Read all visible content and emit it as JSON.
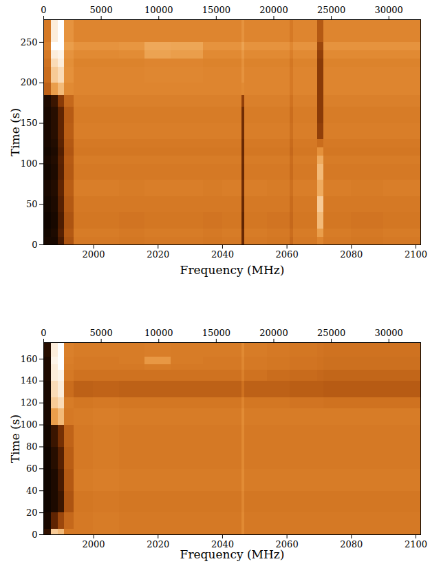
{
  "chart_data": [
    {
      "type": "heatmap",
      "xlabel": "Frequency (MHz)",
      "ylabel": "Time (s)",
      "xlim": [
        1984.5,
        2101.5
      ],
      "xticks": [
        2000,
        2020,
        2040,
        2060,
        2080,
        2100
      ],
      "x2lim": [
        0,
        32768
      ],
      "x2ticks": [
        0,
        5000,
        10000,
        15000,
        20000,
        25000,
        30000
      ],
      "ylim": [
        0,
        278
      ],
      "yticks": [
        0,
        50,
        100,
        150,
        200,
        250
      ],
      "color_range": [
        0,
        1
      ],
      "x_edges": [
        1984.5,
        1987,
        1989,
        1991,
        1994,
        2000,
        2008,
        2016,
        2024,
        2034,
        2040,
        2046,
        2047,
        2054,
        2061,
        2062,
        2069.5,
        2071.5,
        2080,
        2090,
        2101.5
      ],
      "y_edges": [
        0,
        10,
        20,
        40,
        60,
        80,
        100,
        110,
        120,
        130,
        150,
        170,
        185,
        200,
        220,
        230,
        240,
        250,
        278
      ],
      "cells": [
        [
          0.05,
          0.05,
          0.15,
          0.4,
          0.55,
          0.55,
          0.54,
          0.55,
          0.55,
          0.54,
          0.55,
          0.22,
          0.55,
          0.54,
          0.48,
          0.55,
          0.6,
          0.55,
          0.54,
          0.55
        ],
        [
          0.04,
          0.06,
          0.18,
          0.42,
          0.56,
          0.56,
          0.55,
          0.56,
          0.56,
          0.55,
          0.56,
          0.22,
          0.56,
          0.55,
          0.5,
          0.56,
          0.7,
          0.56,
          0.55,
          0.56
        ],
        [
          0.03,
          0.05,
          0.16,
          0.4,
          0.54,
          0.54,
          0.53,
          0.54,
          0.54,
          0.53,
          0.54,
          0.2,
          0.54,
          0.53,
          0.48,
          0.54,
          0.8,
          0.54,
          0.53,
          0.54
        ],
        [
          0.04,
          0.06,
          0.18,
          0.42,
          0.55,
          0.55,
          0.55,
          0.55,
          0.55,
          0.55,
          0.55,
          0.22,
          0.55,
          0.55,
          0.49,
          0.55,
          0.85,
          0.55,
          0.55,
          0.55
        ],
        [
          0.05,
          0.07,
          0.2,
          0.44,
          0.57,
          0.57,
          0.56,
          0.57,
          0.57,
          0.56,
          0.57,
          0.24,
          0.57,
          0.56,
          0.51,
          0.57,
          0.75,
          0.57,
          0.56,
          0.57
        ],
        [
          0.04,
          0.06,
          0.18,
          0.42,
          0.55,
          0.55,
          0.55,
          0.55,
          0.55,
          0.55,
          0.55,
          0.22,
          0.55,
          0.55,
          0.49,
          0.55,
          0.8,
          0.55,
          0.55,
          0.55
        ],
        [
          0.05,
          0.07,
          0.19,
          0.43,
          0.56,
          0.56,
          0.56,
          0.56,
          0.56,
          0.56,
          0.56,
          0.23,
          0.56,
          0.56,
          0.5,
          0.56,
          0.75,
          0.56,
          0.56,
          0.56
        ],
        [
          0.04,
          0.06,
          0.17,
          0.41,
          0.54,
          0.54,
          0.54,
          0.54,
          0.54,
          0.54,
          0.54,
          0.22,
          0.54,
          0.54,
          0.48,
          0.54,
          0.65,
          0.54,
          0.54,
          0.54
        ],
        [
          0.05,
          0.07,
          0.19,
          0.42,
          0.55,
          0.55,
          0.55,
          0.55,
          0.55,
          0.55,
          0.55,
          0.22,
          0.55,
          0.55,
          0.49,
          0.55,
          0.5,
          0.55,
          0.55,
          0.55
        ],
        [
          0.05,
          0.08,
          0.2,
          0.44,
          0.57,
          0.57,
          0.57,
          0.57,
          0.57,
          0.57,
          0.57,
          0.24,
          0.57,
          0.57,
          0.51,
          0.57,
          0.32,
          0.57,
          0.57,
          0.57
        ],
        [
          0.05,
          0.08,
          0.2,
          0.43,
          0.56,
          0.56,
          0.56,
          0.56,
          0.56,
          0.56,
          0.56,
          0.24,
          0.56,
          0.56,
          0.5,
          0.56,
          0.3,
          0.56,
          0.56,
          0.56
        ],
        [
          0.06,
          0.12,
          0.3,
          0.48,
          0.58,
          0.58,
          0.58,
          0.58,
          0.58,
          0.58,
          0.58,
          0.32,
          0.58,
          0.58,
          0.52,
          0.58,
          0.3,
          0.58,
          0.58,
          0.58
        ],
        [
          0.45,
          0.7,
          0.8,
          0.62,
          0.6,
          0.6,
          0.6,
          0.6,
          0.6,
          0.6,
          0.6,
          0.62,
          0.6,
          0.6,
          0.55,
          0.6,
          0.3,
          0.6,
          0.6,
          0.6
        ],
        [
          0.5,
          0.85,
          0.9,
          0.65,
          0.6,
          0.6,
          0.6,
          0.61,
          0.61,
          0.6,
          0.6,
          0.66,
          0.6,
          0.6,
          0.55,
          0.6,
          0.3,
          0.6,
          0.6,
          0.6
        ],
        [
          0.52,
          0.9,
          0.95,
          0.64,
          0.59,
          0.59,
          0.59,
          0.6,
          0.6,
          0.59,
          0.59,
          0.65,
          0.59,
          0.59,
          0.54,
          0.59,
          0.3,
          0.59,
          0.59,
          0.59
        ],
        [
          0.55,
          0.95,
          0.97,
          0.66,
          0.62,
          0.62,
          0.63,
          0.72,
          0.7,
          0.62,
          0.62,
          0.68,
          0.62,
          0.62,
          0.57,
          0.62,
          0.32,
          0.62,
          0.62,
          0.62
        ],
        [
          0.58,
          1.0,
          1.0,
          0.7,
          0.66,
          0.66,
          0.67,
          0.74,
          0.73,
          0.66,
          0.66,
          0.72,
          0.66,
          0.66,
          0.61,
          0.66,
          0.35,
          0.66,
          0.66,
          0.66
        ],
        [
          0.55,
          0.95,
          1.0,
          0.66,
          0.6,
          0.6,
          0.6,
          0.6,
          0.6,
          0.6,
          0.6,
          0.66,
          0.6,
          0.6,
          0.55,
          0.6,
          0.42,
          0.6,
          0.6,
          0.6
        ]
      ]
    },
    {
      "type": "heatmap",
      "xlabel": "Frequency (MHz)",
      "ylabel": "Time (s)",
      "xlim": [
        1984.5,
        2101.5
      ],
      "xticks": [
        2000,
        2020,
        2040,
        2060,
        2080,
        2100
      ],
      "x2lim": [
        0,
        32768
      ],
      "x2ticks": [
        0,
        5000,
        10000,
        15000,
        20000,
        25000,
        30000
      ],
      "ylim": [
        0,
        175
      ],
      "yticks": [
        0,
        20,
        40,
        60,
        80,
        100,
        120,
        140,
        160
      ],
      "color_range": [
        0,
        1
      ],
      "x_edges": [
        1984.5,
        1987,
        1989,
        1991,
        1994,
        2000,
        2008,
        2016,
        2024,
        2034,
        2040,
        2046,
        2047,
        2054,
        2061,
        2062,
        2069.5,
        2071.5,
        2080,
        2090,
        2101.5
      ],
      "y_edges": [
        0,
        5,
        20,
        40,
        60,
        80,
        100,
        115,
        125,
        140,
        150,
        155,
        162,
        175
      ],
      "cells": [
        [
          0.1,
          0.85,
          0.8,
          0.55,
          0.55,
          0.56,
          0.55,
          0.55,
          0.55,
          0.55,
          0.55,
          0.62,
          0.55,
          0.55,
          0.55,
          0.55,
          0.55,
          0.55,
          0.55,
          0.55
        ],
        [
          0.05,
          0.2,
          0.35,
          0.48,
          0.55,
          0.56,
          0.55,
          0.55,
          0.55,
          0.55,
          0.55,
          0.62,
          0.55,
          0.55,
          0.55,
          0.55,
          0.55,
          0.55,
          0.55,
          0.55
        ],
        [
          0.03,
          0.06,
          0.12,
          0.4,
          0.54,
          0.55,
          0.54,
          0.54,
          0.54,
          0.54,
          0.54,
          0.61,
          0.54,
          0.54,
          0.54,
          0.54,
          0.54,
          0.54,
          0.54,
          0.54
        ],
        [
          0.03,
          0.06,
          0.15,
          0.42,
          0.56,
          0.57,
          0.56,
          0.56,
          0.56,
          0.56,
          0.56,
          0.63,
          0.56,
          0.56,
          0.56,
          0.56,
          0.56,
          0.56,
          0.56,
          0.56
        ],
        [
          0.03,
          0.08,
          0.18,
          0.44,
          0.55,
          0.56,
          0.55,
          0.55,
          0.55,
          0.55,
          0.55,
          0.62,
          0.55,
          0.55,
          0.55,
          0.55,
          0.55,
          0.55,
          0.55,
          0.55
        ],
        [
          0.04,
          0.12,
          0.25,
          0.46,
          0.55,
          0.56,
          0.55,
          0.55,
          0.55,
          0.55,
          0.55,
          0.62,
          0.55,
          0.55,
          0.55,
          0.55,
          0.55,
          0.55,
          0.55,
          0.55
        ],
        [
          0.05,
          0.7,
          0.8,
          0.55,
          0.56,
          0.57,
          0.56,
          0.56,
          0.56,
          0.56,
          0.56,
          0.63,
          0.56,
          0.56,
          0.56,
          0.56,
          0.56,
          0.56,
          0.56,
          0.56
        ],
        [
          0.05,
          0.85,
          0.9,
          0.56,
          0.54,
          0.55,
          0.54,
          0.54,
          0.54,
          0.54,
          0.54,
          0.6,
          0.54,
          0.54,
          0.53,
          0.53,
          0.53,
          0.52,
          0.52,
          0.52
        ],
        [
          0.05,
          0.9,
          0.95,
          0.5,
          0.45,
          0.46,
          0.45,
          0.45,
          0.45,
          0.45,
          0.45,
          0.52,
          0.45,
          0.45,
          0.44,
          0.44,
          0.44,
          0.43,
          0.43,
          0.43
        ],
        [
          0.06,
          0.95,
          0.97,
          0.55,
          0.52,
          0.52,
          0.52,
          0.52,
          0.52,
          0.52,
          0.52,
          0.58,
          0.52,
          0.5,
          0.49,
          0.49,
          0.48,
          0.47,
          0.47,
          0.47
        ],
        [
          0.06,
          0.95,
          1.0,
          0.56,
          0.55,
          0.55,
          0.55,
          0.56,
          0.55,
          0.55,
          0.55,
          0.61,
          0.55,
          0.54,
          0.53,
          0.53,
          0.52,
          0.51,
          0.51,
          0.51
        ],
        [
          0.06,
          0.97,
          1.0,
          0.57,
          0.55,
          0.55,
          0.56,
          0.68,
          0.56,
          0.55,
          0.55,
          0.61,
          0.55,
          0.54,
          0.53,
          0.53,
          0.52,
          0.51,
          0.51,
          0.51
        ],
        [
          0.08,
          0.95,
          1.0,
          0.58,
          0.56,
          0.56,
          0.56,
          0.57,
          0.56,
          0.56,
          0.56,
          0.62,
          0.56,
          0.55,
          0.54,
          0.54,
          0.53,
          0.52,
          0.52,
          0.52
        ]
      ]
    }
  ]
}
